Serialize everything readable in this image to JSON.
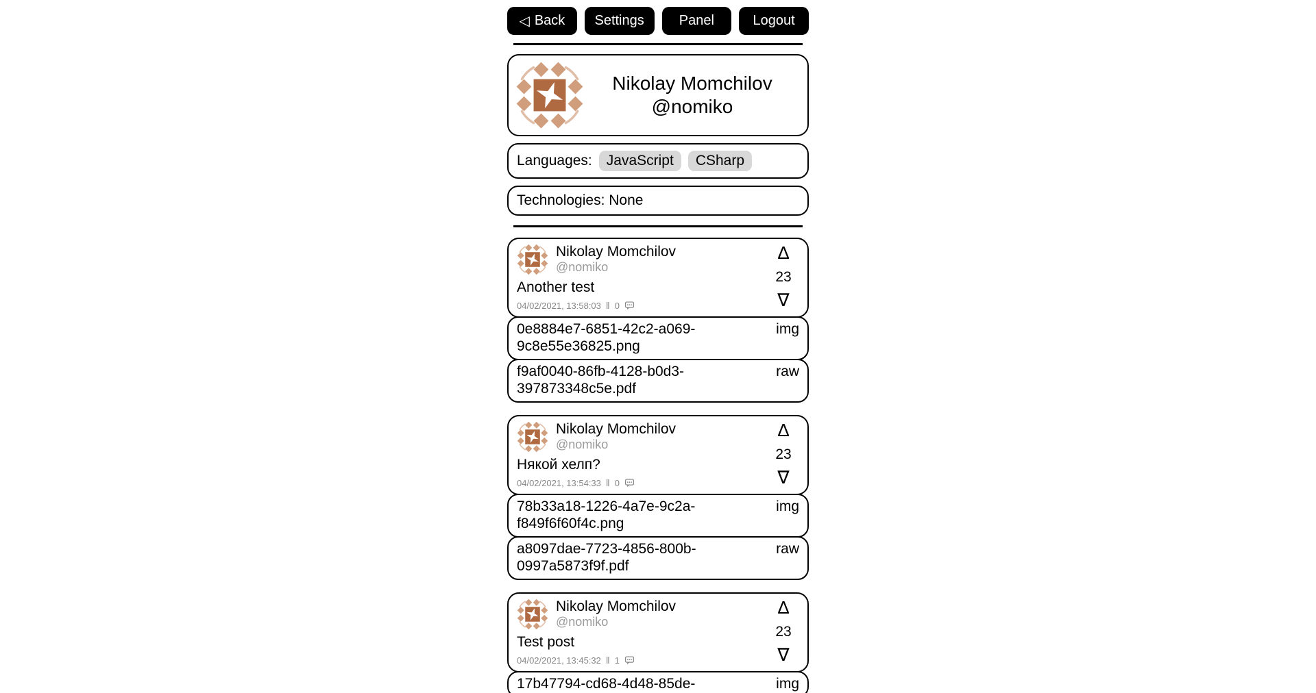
{
  "nav": {
    "back": {
      "icon": "◁",
      "label": "Back"
    },
    "settings": {
      "label": "Settings"
    },
    "panel": {
      "label": "Panel"
    },
    "logout": {
      "label": "Logout"
    }
  },
  "profile": {
    "name": "Nikolay Momchilov",
    "handle": "@nomiko",
    "languages_label": "Languages:",
    "languages": [
      "JavaScript",
      "CSharp"
    ],
    "technologies_text": "Technologies: None"
  },
  "icons": {
    "upvote": "Δ",
    "downvote": "∇",
    "meta_separator": "‖",
    "comment": "comment-bubble-icon",
    "avatar": "identicon-avatar"
  },
  "posts": [
    {
      "author": "Nikolay Momchilov",
      "handle": "@nomiko",
      "title": "Another test",
      "timestamp": "04/02/2021, 13:58:03",
      "comment_count": "0",
      "votes": "23",
      "attachments": [
        {
          "name": "0e8884e7-6851-42c2-a069-9c8e55e36825.png",
          "type": "img"
        },
        {
          "name": "f9af0040-86fb-4128-b0d3-397873348c5e.pdf",
          "type": "raw"
        }
      ]
    },
    {
      "author": "Nikolay Momchilov",
      "handle": "@nomiko",
      "title": "Някой хелп?",
      "timestamp": "04/02/2021, 13:54:33",
      "comment_count": "0",
      "votes": "23",
      "attachments": [
        {
          "name": "78b33a18-1226-4a7e-9c2a-f849f6f60f4c.png",
          "type": "img"
        },
        {
          "name": "a8097dae-7723-4856-800b-0997a5873f9f.pdf",
          "type": "raw"
        }
      ]
    },
    {
      "author": "Nikolay Momchilov",
      "handle": "@nomiko",
      "title": "Test post",
      "timestamp": "04/02/2021, 13:45:32",
      "comment_count": "1",
      "votes": "23",
      "attachments": [
        {
          "name": "17b47794-cd68-4d48-85de-",
          "type": "img"
        }
      ]
    }
  ],
  "colors": {
    "button_bg": "#000000",
    "button_text": "#ffffff",
    "card_border": "#000000",
    "tag_bg": "#d8d8d8",
    "muted_text": "#878787",
    "handle_text": "#9a9a9a",
    "avatar_primary": "#b06a42",
    "avatar_secondary": "#d09e7c",
    "avatar_tertiary": "#e0bda6"
  }
}
